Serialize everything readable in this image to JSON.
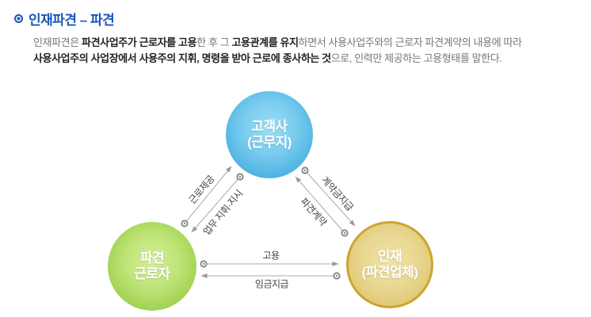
{
  "header": {
    "title": "인재파견 – 파견",
    "accent_color": "#1a56b8"
  },
  "intro": {
    "segments": [
      {
        "text": "인재파견은 ",
        "bold": false
      },
      {
        "text": "파견사업주가 근로자를 고용",
        "bold": true
      },
      {
        "text": "한 후 그 ",
        "bold": false
      },
      {
        "text": "고용관계를 유지",
        "bold": true
      },
      {
        "text": "하면서 사용사업주와의 근로자 파견계약의 내용에 따라 ",
        "bold": false
      },
      {
        "text": "사용사업주의 사업장에서 사용주의 지휘, 명령을 받아 근로에 종사하는 것",
        "bold": true
      },
      {
        "text": "으로, 인력만 제공하는 고용형태를 말한다.",
        "bold": false
      }
    ]
  },
  "diagram": {
    "nodes": [
      {
        "id": "client",
        "line1": "고객사",
        "line2": "(근무지)",
        "color": "#4ab1e2"
      },
      {
        "id": "worker",
        "line1": "파견",
        "line2": "근로자",
        "color": "#8cc73c"
      },
      {
        "id": "agency",
        "line1": "인재",
        "line2": "(파견업체)",
        "color": "#d5ab35"
      }
    ],
    "edges": [
      {
        "id": "labor-provision",
        "label": "근로제공",
        "from": "worker",
        "to": "client"
      },
      {
        "id": "work-direction",
        "label": "업무 지휘·지시",
        "from": "client",
        "to": "worker"
      },
      {
        "id": "contract-payment",
        "label": "계약금지급",
        "from": "client",
        "to": "agency"
      },
      {
        "id": "dispatch-contract",
        "label": "파견계약",
        "from": "agency",
        "to": "client"
      },
      {
        "id": "employment",
        "label": "고용",
        "from": "worker",
        "to": "agency"
      },
      {
        "id": "wage-payment",
        "label": "임금지급",
        "from": "agency",
        "to": "worker"
      }
    ],
    "arrow_color": "#a8a8a8"
  }
}
